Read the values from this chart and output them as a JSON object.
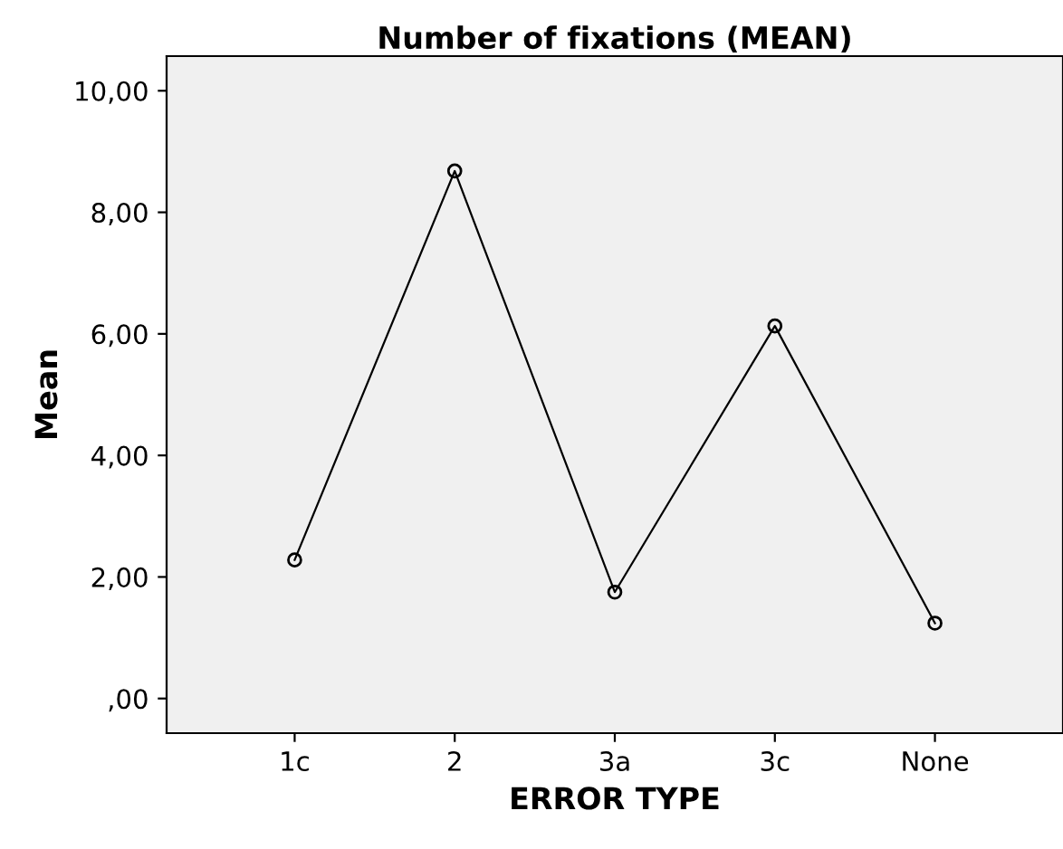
{
  "chart_data": {
    "type": "line",
    "title": "Number of fixations (MEAN)",
    "xlabel": "ERROR TYPE",
    "ylabel": "Mean",
    "categories": [
      "1c",
      "2",
      "3a",
      "3c",
      "None"
    ],
    "series": [
      {
        "color": "#000000",
        "values": [
          2.28,
          8.68,
          1.75,
          6.13,
          1.24
        ]
      }
    ],
    "marker": "circle",
    "line_style": "solid",
    "grid": false,
    "ylim": [
      -0.57,
      10.57
    ],
    "yticks": [
      {
        "value": 0,
        "label": ",00"
      },
      {
        "value": 2,
        "label": "2,00"
      },
      {
        "value": 4,
        "label": "4,00"
      },
      {
        "value": 6,
        "label": "6,00"
      },
      {
        "value": 8,
        "label": "8,00"
      },
      {
        "value": 10,
        "label": "10,00"
      }
    ]
  }
}
